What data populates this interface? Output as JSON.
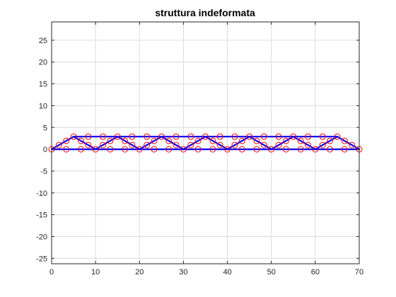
{
  "chart_data": {
    "type": "line",
    "title": "struttura indeformata",
    "xlabel": "",
    "ylabel": "",
    "xlim": [
      0,
      70
    ],
    "ylim": [
      -26.25,
      29.2
    ],
    "x_ticks": [
      0,
      10,
      20,
      30,
      40,
      50,
      60,
      70
    ],
    "y_ticks": [
      -25,
      -20,
      -15,
      -10,
      -5,
      0,
      5,
      10,
      15,
      20,
      25
    ],
    "grid": true,
    "legend": "none",
    "colors": {
      "members": "#0000ff",
      "nodes": "#ff0000",
      "grid": "#dcdcdc",
      "axes": "#262626"
    },
    "series": [
      {
        "marker": "circle",
        "members": [
          {
            "x": [
              0,
              70
            ],
            "y": [
              0,
              0
            ]
          },
          {
            "x": [
              5,
              65
            ],
            "y": [
              2.9,
              2.9
            ]
          },
          {
            "x": [
              0,
              5
            ],
            "y": [
              0,
              2.9
            ]
          },
          {
            "x": [
              65,
              70
            ],
            "y": [
              2.9,
              0
            ]
          },
          {
            "x": [
              5,
              10
            ],
            "y": [
              2.9,
              0
            ]
          },
          {
            "x": [
              10,
              15
            ],
            "y": [
              0,
              2.9
            ]
          },
          {
            "x": [
              15,
              20
            ],
            "y": [
              2.9,
              0
            ]
          },
          {
            "x": [
              20,
              25
            ],
            "y": [
              0,
              2.9
            ]
          },
          {
            "x": [
              25,
              30
            ],
            "y": [
              2.9,
              0
            ]
          },
          {
            "x": [
              30,
              35
            ],
            "y": [
              0,
              2.9
            ]
          },
          {
            "x": [
              35,
              40
            ],
            "y": [
              2.9,
              0
            ]
          },
          {
            "x": [
              40,
              45
            ],
            "y": [
              0,
              2.9
            ]
          },
          {
            "x": [
              45,
              50
            ],
            "y": [
              2.9,
              0
            ]
          },
          {
            "x": [
              50,
              55
            ],
            "y": [
              0,
              2.9
            ]
          },
          {
            "x": [
              55,
              60
            ],
            "y": [
              2.9,
              0
            ]
          },
          {
            "x": [
              60,
              65
            ],
            "y": [
              0,
              2.9
            ]
          }
        ],
        "nodes_bottom_x": [
          0,
          3.33,
          6.67,
          10,
          13.33,
          16.67,
          20,
          23.33,
          26.67,
          30,
          33.33,
          36.67,
          40,
          43.33,
          46.67,
          50,
          53.33,
          56.67,
          60,
          63.33,
          66.67,
          70
        ],
        "nodes_bottom_y": 0,
        "nodes_top_x": [
          5,
          8.33,
          11.67,
          15,
          18.33,
          21.67,
          25,
          28.33,
          31.67,
          35,
          38.33,
          41.67,
          45,
          48.33,
          51.67,
          55,
          58.33,
          61.67,
          65
        ],
        "nodes_top_y": 2.9,
        "nodes_diagonal": [
          {
            "x": 1.67,
            "y": 0.97
          },
          {
            "x": 3.33,
            "y": 1.93
          },
          {
            "x": 66.67,
            "y": 1.93
          },
          {
            "x": 68.33,
            "y": 0.97
          },
          {
            "x": 6.67,
            "y": 1.93
          },
          {
            "x": 8.33,
            "y": 0.97
          },
          {
            "x": 11.67,
            "y": 0.97
          },
          {
            "x": 13.33,
            "y": 1.93
          },
          {
            "x": 16.67,
            "y": 1.93
          },
          {
            "x": 18.33,
            "y": 0.97
          },
          {
            "x": 21.67,
            "y": 0.97
          },
          {
            "x": 23.33,
            "y": 1.93
          },
          {
            "x": 26.67,
            "y": 1.93
          },
          {
            "x": 28.33,
            "y": 0.97
          },
          {
            "x": 31.67,
            "y": 0.97
          },
          {
            "x": 33.33,
            "y": 1.93
          },
          {
            "x": 36.67,
            "y": 1.93
          },
          {
            "x": 38.33,
            "y": 0.97
          },
          {
            "x": 41.67,
            "y": 0.97
          },
          {
            "x": 43.33,
            "y": 1.93
          },
          {
            "x": 46.67,
            "y": 1.93
          },
          {
            "x": 48.33,
            "y": 0.97
          },
          {
            "x": 51.67,
            "y": 0.97
          },
          {
            "x": 53.33,
            "y": 1.93
          },
          {
            "x": 56.67,
            "y": 1.93
          },
          {
            "x": 58.33,
            "y": 0.97
          },
          {
            "x": 61.67,
            "y": 0.97
          },
          {
            "x": 63.33,
            "y": 1.93
          }
        ]
      }
    ]
  }
}
